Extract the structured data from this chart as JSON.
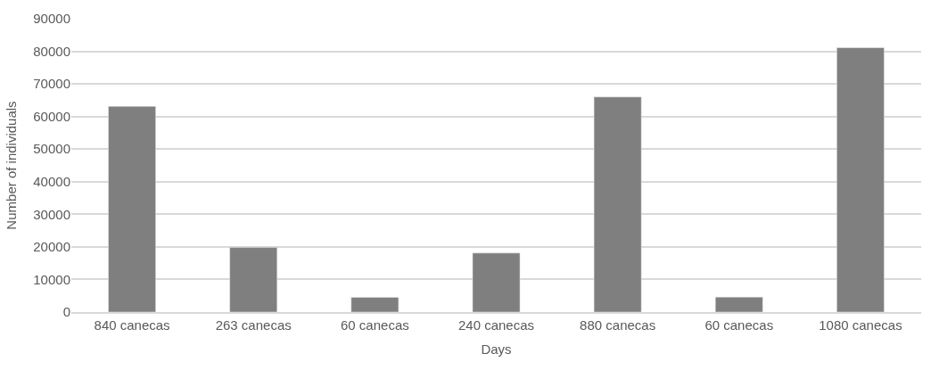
{
  "chart_data": {
    "type": "bar",
    "xlabel": "Days",
    "ylabel": "Number of individuals",
    "categories": [
      "840 canecas",
      "263 canecas",
      "60 canecas",
      "240 canecas",
      "880 canecas",
      "60 canecas",
      "1080 canecas"
    ],
    "values": [
      63100,
      19800,
      4500,
      18100,
      66000,
      4600,
      81100
    ],
    "color": "#7f7f7f",
    "ylim": [
      0,
      90000
    ],
    "yticks": [
      0,
      10000,
      20000,
      30000,
      40000,
      50000,
      60000,
      70000,
      80000,
      90000
    ],
    "grid": "y"
  }
}
